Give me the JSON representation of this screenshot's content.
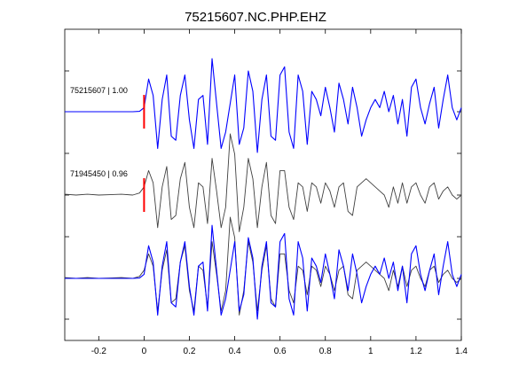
{
  "chart_data": {
    "type": "line",
    "title": "75215607.NC.PHP.EHZ",
    "xlabel": "",
    "ylabel": "",
    "xlim": [
      -0.35,
      1.4
    ],
    "xticks": [
      "-0.2",
      "0",
      "0.2",
      "0.4",
      "0.6",
      "0.8",
      "1",
      "1.2",
      "1.4"
    ],
    "xtick_values": [
      -0.2,
      0,
      0.2,
      0.4,
      0.6,
      0.8,
      1.0,
      1.2,
      1.4
    ],
    "grid": false,
    "pick_time": 0,
    "pick_color": "#ff0000",
    "colors": {
      "template": "#0000ff",
      "match": "#404040",
      "axes": "#000000"
    },
    "panels": [
      {
        "label": "75215607 | 1.00",
        "series": [
          "template"
        ]
      },
      {
        "label": "71945450 | 0.96",
        "series": [
          "match"
        ]
      },
      {
        "label": "",
        "series": [
          "match",
          "template"
        ]
      }
    ],
    "series": [
      {
        "id": "template",
        "x": [
          -0.35,
          -0.3,
          -0.25,
          -0.2,
          -0.15,
          -0.1,
          -0.05,
          -0.02,
          0,
          0.02,
          0.04,
          0.06,
          0.08,
          0.1,
          0.12,
          0.14,
          0.16,
          0.18,
          0.2,
          0.22,
          0.24,
          0.26,
          0.28,
          0.3,
          0.32,
          0.34,
          0.36,
          0.38,
          0.4,
          0.42,
          0.44,
          0.46,
          0.48,
          0.5,
          0.52,
          0.54,
          0.56,
          0.58,
          0.6,
          0.62,
          0.64,
          0.66,
          0.68,
          0.7,
          0.72,
          0.74,
          0.76,
          0.78,
          0.8,
          0.82,
          0.84,
          0.86,
          0.88,
          0.9,
          0.92,
          0.94,
          0.96,
          0.98,
          1.0,
          1.02,
          1.04,
          1.06,
          1.08,
          1.1,
          1.12,
          1.14,
          1.16,
          1.18,
          1.2,
          1.22,
          1.24,
          1.26,
          1.28,
          1.3,
          1.32,
          1.34,
          1.36,
          1.38,
          1.4
        ],
        "values": [
          0.0,
          0.0,
          0.0,
          0.0,
          0.0,
          0.0,
          0.0,
          0.01,
          0.1,
          0.8,
          0.4,
          -0.9,
          0.3,
          0.9,
          -0.6,
          -0.7,
          0.4,
          0.9,
          -0.2,
          -0.9,
          0.3,
          0.4,
          -0.8,
          1.3,
          0.2,
          -0.9,
          -0.5,
          0.2,
          0.9,
          -0.8,
          -0.4,
          1.0,
          0.5,
          -1.0,
          0.3,
          0.9,
          -0.6,
          -0.7,
          0.9,
          1.1,
          -0.5,
          -0.9,
          0.9,
          0.5,
          -0.8,
          0.5,
          0.3,
          -0.1,
          0.6,
          0.1,
          -0.5,
          0.7,
          0.3,
          -0.3,
          0.6,
          0.1,
          -0.6,
          -0.2,
          0.1,
          0.3,
          0.1,
          0.5,
          0.0,
          0.4,
          -0.3,
          0.3,
          -0.6,
          0.6,
          0.8,
          0.1,
          -0.3,
          0.2,
          0.6,
          -0.4,
          0.3,
          0.9,
          0.1,
          -0.2,
          0.1
        ]
      },
      {
        "id": "match",
        "x": [
          -0.35,
          -0.3,
          -0.25,
          -0.2,
          -0.15,
          -0.1,
          -0.05,
          -0.02,
          0,
          0.02,
          0.04,
          0.06,
          0.08,
          0.1,
          0.12,
          0.14,
          0.16,
          0.18,
          0.2,
          0.22,
          0.24,
          0.26,
          0.28,
          0.3,
          0.32,
          0.34,
          0.36,
          0.38,
          0.4,
          0.42,
          0.44,
          0.46,
          0.48,
          0.5,
          0.52,
          0.54,
          0.56,
          0.58,
          0.6,
          0.62,
          0.64,
          0.66,
          0.68,
          0.7,
          0.72,
          0.74,
          0.76,
          0.78,
          0.8,
          0.82,
          0.84,
          0.86,
          0.88,
          0.9,
          0.92,
          0.94,
          0.96,
          0.98,
          1.0,
          1.02,
          1.04,
          1.06,
          1.08,
          1.1,
          1.12,
          1.14,
          1.16,
          1.18,
          1.2,
          1.22,
          1.24,
          1.26,
          1.28,
          1.3,
          1.32,
          1.34,
          1.36,
          1.38,
          1.4
        ],
        "values": [
          0.02,
          0.0,
          0.02,
          0.0,
          0.01,
          0.02,
          0.0,
          0.05,
          0.2,
          0.6,
          0.3,
          -0.8,
          0.2,
          0.7,
          -0.6,
          -0.5,
          0.4,
          0.8,
          -0.3,
          -0.8,
          0.3,
          0.2,
          -0.7,
          0.9,
          0.1,
          -0.8,
          -0.3,
          1.5,
          1.0,
          -0.9,
          -0.3,
          0.9,
          0.4,
          -0.8,
          0.2,
          0.8,
          -0.5,
          -0.7,
          0.6,
          0.6,
          -0.3,
          -0.6,
          0.3,
          0.2,
          -0.4,
          0.3,
          0.2,
          -0.2,
          0.3,
          0.1,
          -0.3,
          0.2,
          0.3,
          -0.4,
          -0.5,
          0.2,
          0.3,
          0.4,
          0.3,
          0.2,
          0.1,
          0.0,
          -0.3,
          0.2,
          -0.2,
          0.3,
          -0.2,
          0.2,
          0.3,
          0.0,
          -0.2,
          0.2,
          0.3,
          -0.1,
          0.1,
          0.2,
          0.0,
          -0.1,
          0.0
        ]
      }
    ]
  }
}
